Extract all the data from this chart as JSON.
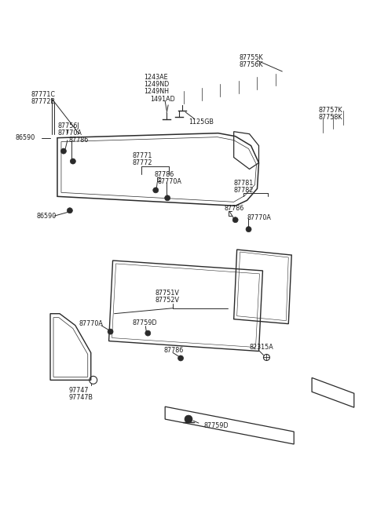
{
  "bg_color": "#ffffff",
  "line_color": "#2a2a2a",
  "text_color": "#1a1a1a",
  "font_size": 5.8,
  "components": {
    "top_strip_label1": "87755K",
    "top_strip_label2": "87756K",
    "right_strip_label1": "87757K",
    "right_strip_label2": "87758K",
    "fastener_group_label1": "1243AE",
    "fastener_group_label2": "1249ND",
    "fastener_group_label3": "1249NH",
    "fastener_group_label4": "1491AD",
    "screw_label": "1125GB",
    "corner_top_label1": "87771C",
    "corner_top_label2": "87772B",
    "corner_left_label": "86590",
    "corner_parts_label1": "87756J",
    "corner_parts_label2": "87770A",
    "corner_parts_label3": "87786",
    "corner_bottom_label": "86590",
    "front_panel_label1": "87771",
    "front_panel_label2": "87772",
    "front_panel_parts1": "87786",
    "front_panel_parts2": "87770A",
    "rear_top_label1": "87781",
    "rear_top_label2": "87782",
    "rear_parts1": "87786",
    "rear_parts2": "87770A",
    "step_label1": "87751V",
    "step_label2": "87752V",
    "step_parts1": "87770A",
    "step_parts2": "87759D",
    "step_parts3": "87786",
    "step_parts4": "82315A",
    "step_parts5": "97747",
    "step_parts6": "97747B",
    "step_parts7": "87759D"
  }
}
